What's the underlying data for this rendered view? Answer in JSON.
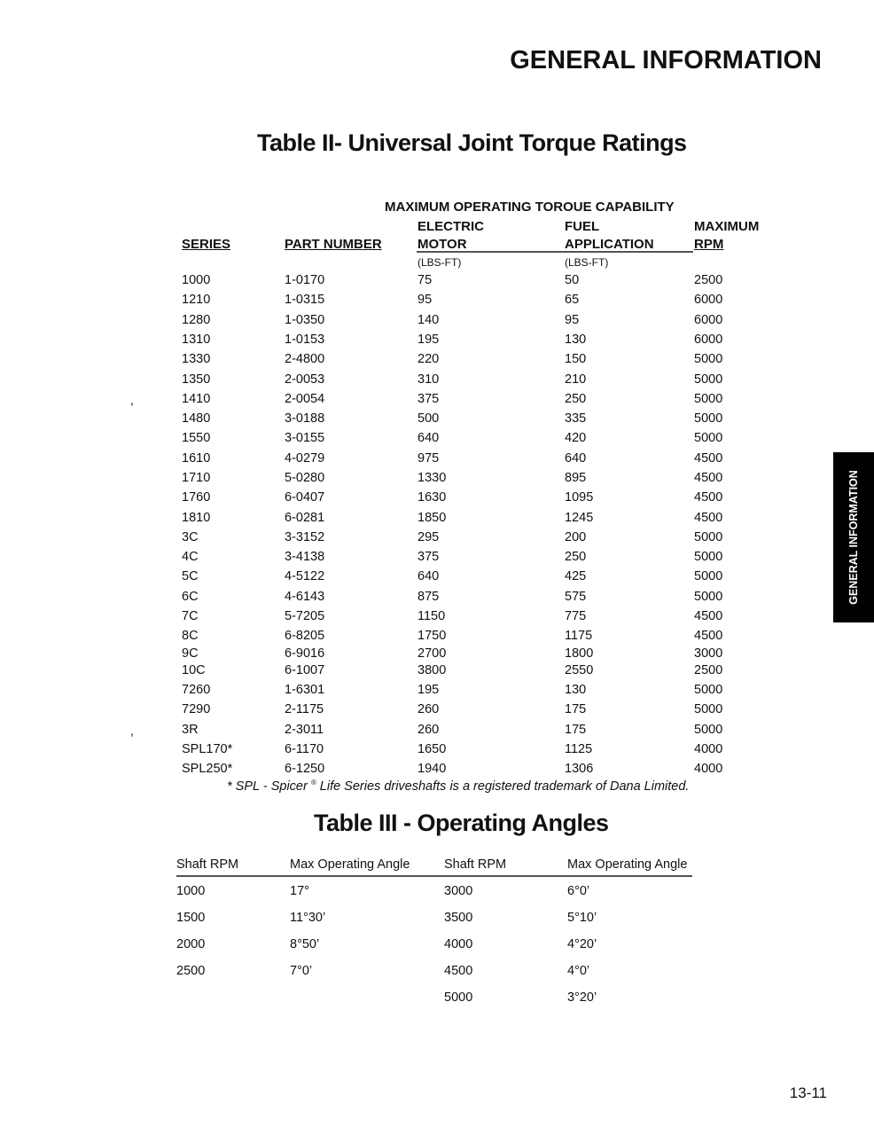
{
  "section_title": "GENERAL INFORMATION",
  "side_tab": "GENERAL INFORMATION",
  "page_number": "13-11",
  "table2": {
    "title": "Table II- Universal Joint Torque Ratings",
    "group_header": "MAXIMUM OPERATING TOROUE CAPABILITY",
    "headers": {
      "series": "SERIES",
      "part_number": "PART NUMBER",
      "electric_1": "ELECTRIC",
      "electric_2": "MOTOR",
      "fuel_1": "FUEL",
      "fuel_2": "APPLICATION",
      "rpm_1": "MAXIMUM",
      "rpm_2": "RPM",
      "electric_unit": "(LBS-FT)",
      "fuel_unit": "(LBS-FT)"
    },
    "rows": [
      [
        "1000",
        "1-0170",
        "75",
        "50",
        "2500"
      ],
      [
        "1210",
        "1-0315",
        "95",
        "65",
        "6000"
      ],
      [
        "1280",
        "1-0350",
        "140",
        "95",
        "6000"
      ],
      [
        "1310",
        "1-0153",
        "195",
        "130",
        "6000"
      ],
      [
        "1330",
        "2-4800",
        "220",
        "150",
        "5000"
      ],
      [
        "1350",
        "2-0053",
        "310",
        "210",
        "5000"
      ],
      [
        "1410",
        "2-0054",
        "375",
        "250",
        "5000"
      ],
      [
        "1480",
        "3-0188",
        "500",
        "335",
        "5000"
      ],
      [
        "1550",
        "3-0155",
        "640",
        "420",
        "5000"
      ],
      [
        "1610",
        "4-0279",
        "975",
        "640",
        "4500"
      ],
      [
        "1710",
        "5-0280",
        "1330",
        "895",
        "4500"
      ],
      [
        "1760",
        "6-0407",
        "1630",
        "1095",
        "4500"
      ],
      [
        "1810",
        "6-0281",
        "1850",
        "1245",
        "4500"
      ],
      [
        "3C",
        "3-3152",
        "295",
        "200",
        "5000"
      ],
      [
        "4C",
        "3-4138",
        "375",
        "250",
        "5000"
      ],
      [
        "5C",
        "4-5122",
        "640",
        "425",
        "5000"
      ],
      [
        "6C",
        "4-6143",
        "875",
        "575",
        "5000"
      ],
      [
        "7C",
        "5-7205",
        "1150",
        "775",
        "4500"
      ],
      [
        "8C",
        "6-8205",
        "1750",
        "1175",
        "4500"
      ],
      [
        "9C",
        "6-9016",
        "2700",
        "1800",
        "3000"
      ],
      [
        "10C",
        "6-1007",
        "3800",
        "2550",
        "2500"
      ],
      [
        "7260",
        "1-6301",
        "195",
        "130",
        "5000"
      ],
      [
        "7290",
        "2-1175",
        "260",
        "175",
        "5000"
      ],
      [
        "3R",
        "2-3011",
        "260",
        "175",
        "5000"
      ],
      [
        "SPL170*",
        "6-1170",
        "1650",
        "1125",
        "4000"
      ],
      [
        "SPL250*",
        "6-1250",
        "1940",
        "1306",
        "4000"
      ]
    ],
    "stray_marks": [
      ",",
      ","
    ],
    "footnote_a": "* SPL - Spicer ",
    "footnote_reg": "®",
    "footnote_b": " Life Series driveshafts is a registered trademark of Dana Limited."
  },
  "table3": {
    "title": "Table III - Operating Angles",
    "headers": [
      "Shaft RPM",
      "Max Operating Angle",
      "Shaft RPM",
      "Max Operating Angle"
    ],
    "left": [
      [
        "1000",
        "17°"
      ],
      [
        "1500",
        "11°30’"
      ],
      [
        "2000",
        "8°50’"
      ],
      [
        "2500",
        "7°0’"
      ]
    ],
    "right": [
      [
        "3000",
        "6°0’"
      ],
      [
        "3500",
        "5°10’"
      ],
      [
        "4000",
        "4°20’"
      ],
      [
        "4500",
        "4°0’"
      ],
      [
        "5000",
        "3°20’"
      ]
    ]
  }
}
